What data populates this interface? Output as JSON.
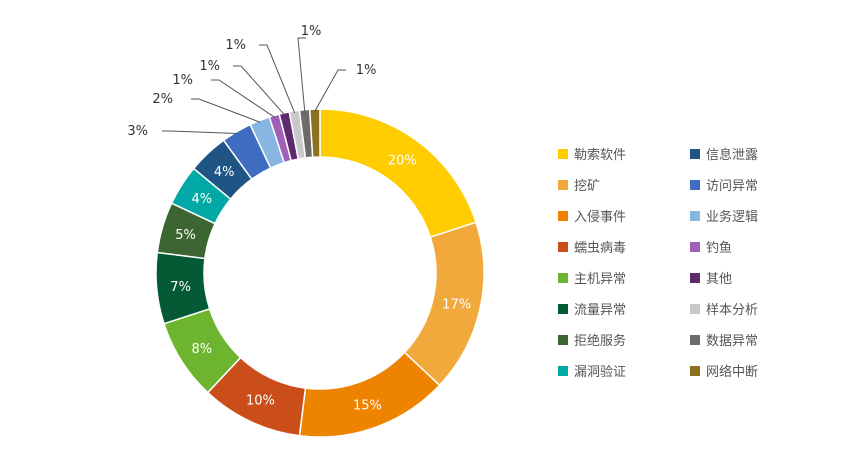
{
  "chart_data": {
    "type": "pie",
    "variant": "donut",
    "title": "",
    "legend_position": "right",
    "legend_columns": 2,
    "slices": [
      {
        "name": "勒索软件",
        "value": 20,
        "label": "20%",
        "color": "#FFCC00",
        "label_pos": "inside"
      },
      {
        "name": "挖矿",
        "value": 17,
        "label": "17%",
        "color": "#F2A93B",
        "label_pos": "inside"
      },
      {
        "name": "入侵事件",
        "value": 15,
        "label": "15%",
        "color": "#EE8300",
        "label_pos": "inside"
      },
      {
        "name": "蠕虫病毒",
        "value": 10,
        "label": "10%",
        "color": "#CB4E1A",
        "label_pos": "inside"
      },
      {
        "name": "主机异常",
        "value": 8,
        "label": "8%",
        "color": "#6DB52F",
        "label_pos": "inside"
      },
      {
        "name": "流量异常",
        "value": 7,
        "label": "7%",
        "color": "#035A35",
        "label_pos": "inside"
      },
      {
        "name": "拒绝服务",
        "value": 5,
        "label": "5%",
        "color": "#3D6531",
        "label_pos": "inside"
      },
      {
        "name": "漏洞验证",
        "value": 4,
        "label": "4%",
        "color": "#00A9A5",
        "label_pos": "inside"
      },
      {
        "name": "信息泄露",
        "value": 4,
        "label": "4%",
        "color": "#1F5585",
        "label_pos": "inside"
      },
      {
        "name": "访问异常",
        "value": 3,
        "label": "3%",
        "color": "#3D6CC0",
        "label_pos": "outside"
      },
      {
        "name": "业务逻辑",
        "value": 2,
        "label": "2%",
        "color": "#88B6E3",
        "label_pos": "outside"
      },
      {
        "name": "钓鱼",
        "value": 1,
        "label": "1%",
        "color": "#A060B8",
        "label_pos": "outside"
      },
      {
        "name": "其他",
        "value": 1,
        "label": "1%",
        "color": "#5E2A6F",
        "label_pos": "outside"
      },
      {
        "name": "样本分析",
        "value": 1,
        "label": "1%",
        "color": "#C8C8C8",
        "label_pos": "outside"
      },
      {
        "name": "数据异常",
        "value": 1,
        "label": "1%",
        "color": "#6B6B6B",
        "label_pos": "outside"
      },
      {
        "name": "网络中断",
        "value": 1,
        "label": "1%",
        "color": "#8D7020",
        "label_pos": "outside"
      }
    ],
    "legend_order": [
      "勒索软件",
      "信息泄露",
      "挖矿",
      "访问异常",
      "入侵事件",
      "业务逻辑",
      "蠕虫病毒",
      "钓鱼",
      "主机异常",
      "其他",
      "流量异常",
      "样本分析",
      "拒绝服务",
      "数据异常",
      "漏洞验证",
      "网络中断"
    ]
  }
}
